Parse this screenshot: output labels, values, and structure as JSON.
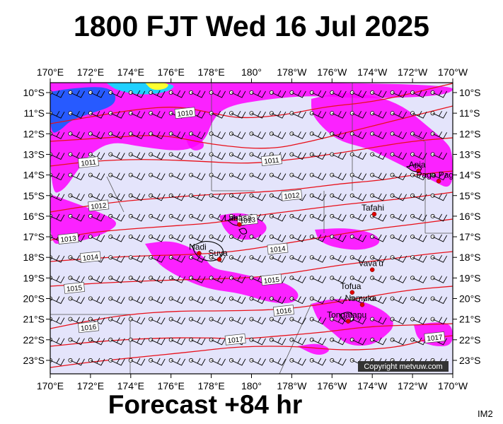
{
  "title": "1800 FJT Wed 16 Jul 2025",
  "footer": "Forecast +84 hr",
  "product_code": "IM2",
  "copyright": "Copyright metvuw.com",
  "map": {
    "lon_labels": [
      "170°E",
      "172°E",
      "174°E",
      "176°E",
      "178°E",
      "180°",
      "178°W",
      "176°W",
      "174°W",
      "172°W",
      "170°W"
    ],
    "lat_labels": [
      "10°S",
      "11°S",
      "12°S",
      "13°S",
      "14°S",
      "15°S",
      "16°S",
      "17°S",
      "18°S",
      "19°S",
      "20°S",
      "21°S",
      "22°S",
      "23°S"
    ],
    "isobar_color": "#e8101a",
    "background_color": "#e4e4fb",
    "rain_color": "#ff00ff",
    "heavy_rain_color": "#1060ff",
    "isobar_labels": [
      {
        "text": "1010",
        "lon": 176.7,
        "lat": -11.0
      },
      {
        "text": "1011",
        "lon": 171.9,
        "lat": -13.4
      },
      {
        "text": "1011",
        "lon": 181.0,
        "lat": -13.3
      },
      {
        "text": "1012",
        "lon": 172.4,
        "lat": -15.5
      },
      {
        "text": "1012",
        "lon": 182.0,
        "lat": -15.0
      },
      {
        "text": "1013",
        "lon": 170.9,
        "lat": -17.1
      },
      {
        "text": "1013",
        "lon": 179.8,
        "lat": -16.2
      },
      {
        "text": "1014",
        "lon": 172.0,
        "lat": -18.0
      },
      {
        "text": "1014",
        "lon": 181.3,
        "lat": -17.6
      },
      {
        "text": "1015",
        "lon": 171.2,
        "lat": -19.5
      },
      {
        "text": "1015",
        "lon": 181.0,
        "lat": -19.1
      },
      {
        "text": "1016",
        "lon": 171.9,
        "lat": -21.4
      },
      {
        "text": "1016",
        "lon": 181.6,
        "lat": -20.6
      },
      {
        "text": "1017",
        "lon": 179.2,
        "lat": -22.0
      },
      {
        "text": "1017",
        "lon": 189.1,
        "lat": -21.9
      }
    ],
    "places": [
      {
        "name": "Apia",
        "lon": 188.3,
        "lat": -13.8
      },
      {
        "name": "Pago Pago",
        "lon": 189.3,
        "lat": -14.3
      },
      {
        "name": "Tafahi",
        "lon": 186.1,
        "lat": -15.9
      },
      {
        "name": "Labasa",
        "lon": 179.4,
        "lat": -16.4
      },
      {
        "name": "Nadi",
        "lon": 177.4,
        "lat": -17.8
      },
      {
        "name": "Suva",
        "lon": 178.4,
        "lat": -18.1
      },
      {
        "name": "Vava'u",
        "lon": 186.0,
        "lat": -18.6
      },
      {
        "name": "Tofua",
        "lon": 185.0,
        "lat": -19.7
      },
      {
        "name": "Nomuka",
        "lon": 185.5,
        "lat": -20.3
      },
      {
        "name": "Tongatapu",
        "lon": 184.8,
        "lat": -21.1
      }
    ]
  }
}
